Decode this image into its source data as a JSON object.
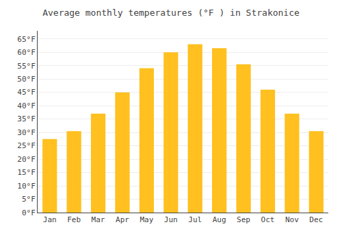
{
  "chart_data": {
    "type": "bar",
    "title": "Average monthly temperatures (°F ) in Strakonice",
    "categories": [
      "Jan",
      "Feb",
      "Mar",
      "Apr",
      "May",
      "Jun",
      "Jul",
      "Aug",
      "Sep",
      "Oct",
      "Nov",
      "Dec"
    ],
    "values": [
      27.5,
      30.5,
      37.0,
      45.0,
      54.0,
      60.0,
      63.0,
      61.5,
      55.5,
      46.0,
      37.0,
      30.5
    ],
    "color": "#FFC020",
    "ylim": [
      0,
      68
    ],
    "yticks": [
      {
        "value": 0,
        "label": "0°F"
      },
      {
        "value": 5,
        "label": "5°F"
      },
      {
        "value": 10,
        "label": "10°F"
      },
      {
        "value": 15,
        "label": "15°F"
      },
      {
        "value": 20,
        "label": "20°F"
      },
      {
        "value": 25,
        "label": "25°F"
      },
      {
        "value": 30,
        "label": "30°F"
      },
      {
        "value": 35,
        "label": "35°F"
      },
      {
        "value": 40,
        "label": "40°F"
      },
      {
        "value": 45,
        "label": "45°F"
      },
      {
        "value": 50,
        "label": "50°F"
      },
      {
        "value": 55,
        "label": "55°F"
      },
      {
        "value": 60,
        "label": "60°F"
      },
      {
        "value": 65,
        "label": "65°F"
      }
    ],
    "grid": true
  }
}
